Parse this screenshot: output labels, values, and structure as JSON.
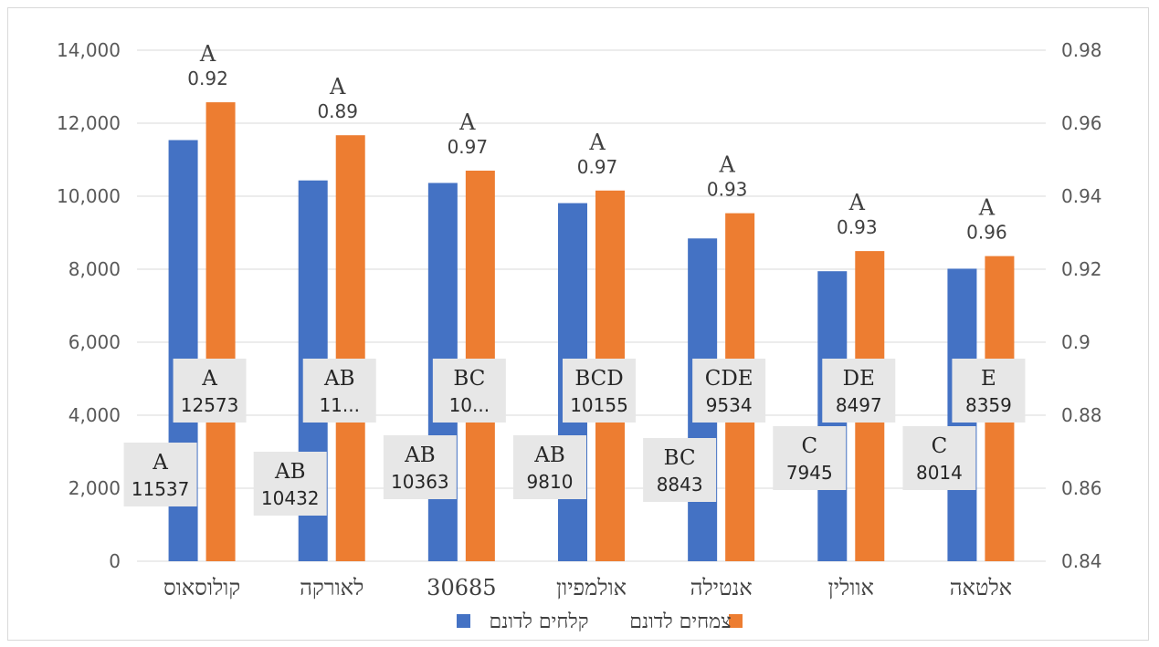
{
  "chart_data": {
    "type": "bar",
    "categories": [
      "קולוסאוס",
      "לאורקה",
      "30685",
      "אולמפיון",
      "אנטילה",
      "אוולין",
      "אלטאה"
    ],
    "series": [
      {
        "name": "קלחים לדונם",
        "color": "#4472C4",
        "values": [
          11537,
          10432,
          10363,
          9810,
          8843,
          7945,
          8014
        ],
        "labels": [
          {
            "letters": "A",
            "value": "11537"
          },
          {
            "letters": "AB",
            "value": "10432"
          },
          {
            "letters": "AB",
            "value": "10363"
          },
          {
            "letters": "AB",
            "value": "9810"
          },
          {
            "letters": "BC",
            "value": "8843"
          },
          {
            "letters": "C",
            "value": "7945"
          },
          {
            "letters": "C",
            "value": "8014"
          }
        ]
      },
      {
        "name": "צמחים לדונם",
        "color": "#ED7D31",
        "values": [
          12573,
          11670,
          10700,
          10155,
          9534,
          8497,
          8359
        ],
        "labels": [
          {
            "letters": "A",
            "value": "12573"
          },
          {
            "letters": "AB",
            "value": "11..."
          },
          {
            "letters": "BC",
            "value": "10..."
          },
          {
            "letters": "BCD",
            "value": "10155"
          },
          {
            "letters": "CDE",
            "value": "9534"
          },
          {
            "letters": "DE",
            "value": "8497"
          },
          {
            "letters": "E",
            "value": "8359"
          }
        ]
      }
    ],
    "top_annotations": [
      {
        "letter": "A",
        "value": "0.92"
      },
      {
        "letter": "A",
        "value": "0.89"
      },
      {
        "letter": "A",
        "value": "0.97"
      },
      {
        "letter": "A",
        "value": "0.97"
      },
      {
        "letter": "A",
        "value": "0.93"
      },
      {
        "letter": "A",
        "value": "0.93"
      },
      {
        "letter": "A",
        "value": "0.96"
      }
    ],
    "y_left": {
      "min": 0,
      "max": 14000,
      "step": 2000,
      "tick_labels": [
        "0",
        "2,000",
        "4,000",
        "6,000",
        "8,000",
        "10,000",
        "12,000",
        "14,000"
      ]
    },
    "y_right": {
      "min": 0.84,
      "max": 0.98,
      "step": 0.02,
      "tick_labels": [
        "0.84",
        "0.86",
        "0.88",
        "0.9",
        "0.92",
        "0.94",
        "0.96",
        "0.98"
      ]
    },
    "grid": true,
    "legend_position": "bottom",
    "label_box_color": "#E7E7E7"
  }
}
